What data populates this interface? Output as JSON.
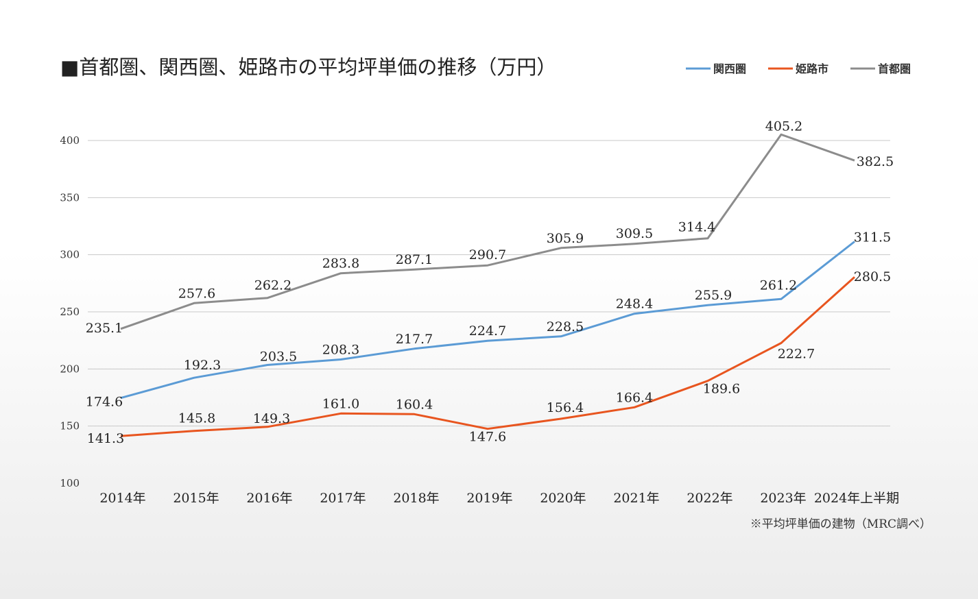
{
  "chart_data": {
    "type": "line",
    "title": "■首都圏、関西圏、姫路市の平均坪単価の推移（万円）",
    "note": "※平均坪単価の建物（MRC調べ）",
    "categories": [
      "2014年",
      "2015年",
      "2016年",
      "2017年",
      "2018年",
      "2019年",
      "2020年",
      "2021年",
      "2022年",
      "2023年",
      "2024年上半期"
    ],
    "ylim": [
      100,
      400
    ],
    "yticks": [
      "100",
      "150",
      "200",
      "250",
      "300",
      "350",
      "400"
    ],
    "grid": true,
    "legend_position": "top-right",
    "series": [
      {
        "name": "関西圏",
        "color": "#5b9bd5",
        "values": [
          174.6,
          192.3,
          203.5,
          208.3,
          217.7,
          224.7,
          228.5,
          248.4,
          255.9,
          261.2,
          311.5
        ],
        "labels": [
          "174.6",
          "192.3",
          "203.5",
          "208.3",
          "217.7",
          "224.7",
          "228.5",
          "248.4",
          "255.9",
          "261.2",
          "311.5"
        ]
      },
      {
        "name": "姫路市",
        "color": "#e8551f",
        "values": [
          141.3,
          145.8,
          149.3,
          161.0,
          160.4,
          147.6,
          156.4,
          166.4,
          189.6,
          222.7,
          280.5
        ],
        "labels": [
          "141.3",
          "145.8",
          "149.3",
          "161.0",
          "160.4",
          "147.6",
          "156.4",
          "166.4",
          "189.6",
          "222.7",
          "280.5"
        ]
      },
      {
        "name": "首都圏",
        "color": "#8c8c8c",
        "values": [
          235.1,
          257.6,
          262.2,
          283.8,
          287.1,
          290.7,
          305.9,
          309.5,
          314.4,
          405.2,
          382.5
        ],
        "labels": [
          "235.1",
          "257.6",
          "262.2",
          "283.8",
          "287.1",
          "290.7",
          "305.9",
          "309.5",
          "314.4",
          "405.2",
          "382.5"
        ]
      }
    ]
  }
}
